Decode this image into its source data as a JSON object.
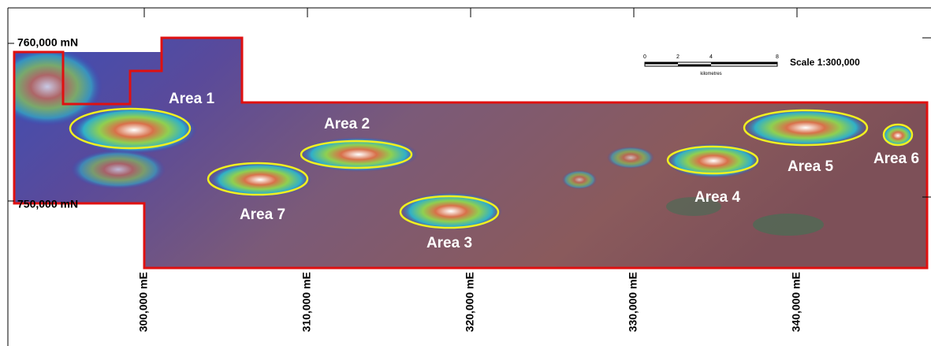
{
  "northings": [
    "760,000 mN",
    "750,000 mN"
  ],
  "eastings": [
    "300,000 mE",
    "310,000 mE",
    "320,000 mE",
    "330,000 mE",
    "340,000 mE"
  ],
  "scale_bar": {
    "ticks": [
      "0",
      "2",
      "4",
      "8"
    ],
    "unit": "kilometres",
    "label": "Scale 1:300,000"
  },
  "areas": [
    "Area 1",
    "Area 2",
    "Area 3",
    "Area 4",
    "Area 5",
    "Area 6",
    "Area 7"
  ]
}
